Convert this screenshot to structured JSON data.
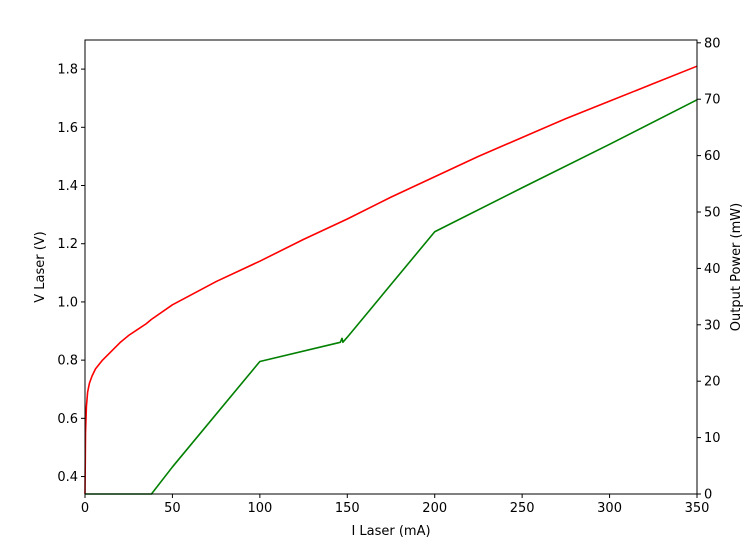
{
  "chart_data": {
    "type": "line",
    "title": "",
    "xlabel": "I Laser (mA)",
    "ylabel_left": "V Laser (V)",
    "ylabel_right": "Output Power (mW)",
    "xlim": [
      0,
      350
    ],
    "ylim_left": [
      0.34,
      1.9
    ],
    "ylim_right": [
      0,
      80.5
    ],
    "xticks": [
      "0",
      "50",
      "100",
      "150",
      "200",
      "250",
      "300",
      "350"
    ],
    "yticks_left": [
      "0.4",
      "0.6",
      "0.8",
      "1.0",
      "1.2",
      "1.4",
      "1.6",
      "1.8"
    ],
    "yticks_right": [
      "0",
      "10",
      "20",
      "30",
      "40",
      "50",
      "60",
      "70",
      "80"
    ],
    "grid": false,
    "series": [
      {
        "axis": "left",
        "color": "#ff0000",
        "x": [
          0,
          0.3,
          0.8,
          1.5,
          2.5,
          4,
          6,
          8,
          10,
          15,
          20,
          25,
          30,
          35,
          38,
          50,
          75,
          100,
          125,
          150,
          175,
          200,
          225,
          250,
          275,
          300,
          325,
          350
        ],
        "y": [
          0.34,
          0.55,
          0.64,
          0.69,
          0.72,
          0.745,
          0.77,
          0.785,
          0.8,
          0.83,
          0.86,
          0.885,
          0.905,
          0.925,
          0.94,
          0.99,
          1.07,
          1.14,
          1.215,
          1.285,
          1.36,
          1.43,
          1.5,
          1.565,
          1.63,
          1.69,
          1.75,
          1.81
        ]
      },
      {
        "axis": "right",
        "color": "#008000",
        "x": [
          0,
          38,
          50,
          100,
          146,
          147,
          147.5,
          148,
          150,
          200,
          250,
          300,
          350
        ],
        "y": [
          0,
          0,
          4.8,
          23.5,
          26.9,
          27.6,
          26.9,
          27.1,
          27.8,
          46.5,
          54.3,
          62.0,
          69.9
        ]
      }
    ]
  }
}
